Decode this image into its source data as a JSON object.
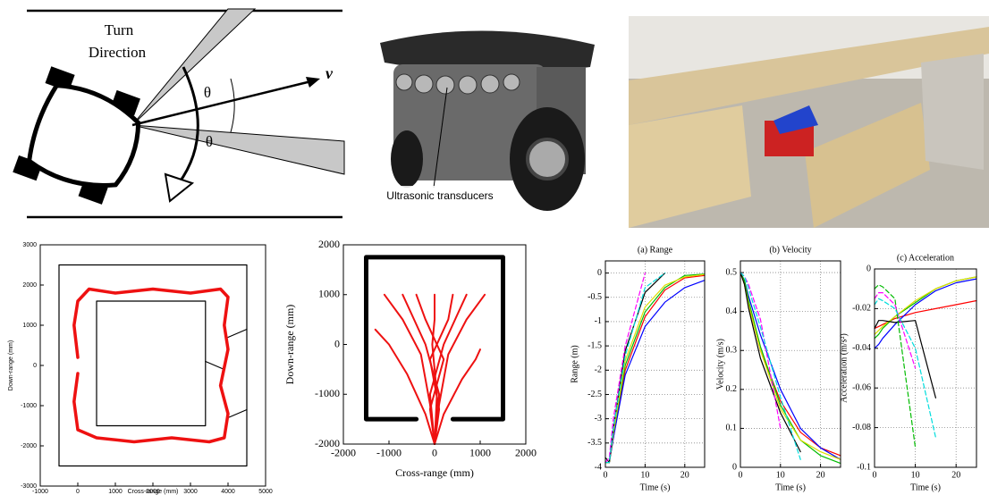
{
  "diagram": {
    "turn_label": [
      "Turn",
      "Direction"
    ],
    "velocity": "v",
    "angles": [
      "θ",
      "θ"
    ]
  },
  "photo": {
    "label": "Ultrasonic transducers"
  },
  "chart_data": [
    {
      "type": "line",
      "xlabel": "Cross-range (mm)",
      "ylabel": "Down-range (mm)",
      "xlim": [
        -1000,
        5000
      ],
      "ylim": [
        -3000,
        3000
      ],
      "xticks": [
        -1000,
        0,
        1000,
        2000,
        3000,
        4000,
        5000
      ],
      "yticks": [
        -3000,
        -2000,
        -1000,
        0,
        1000,
        2000,
        3000
      ],
      "grid": false,
      "series": [
        {
          "color": "#000000",
          "line_width": 1.2,
          "x": [
            -500,
            4500,
            4500,
            -500,
            -500
          ],
          "values": [
            -2500,
            -2500,
            2500,
            2500,
            -2500
          ]
        },
        {
          "color": "#000000",
          "line_width": 1.2,
          "x": [
            500,
            3400,
            3400,
            500,
            500
          ],
          "values": [
            -1500,
            -1500,
            1600,
            1600,
            -1500
          ]
        },
        {
          "color": "#000000",
          "line_width": 1.2,
          "x": [
            4000,
            4500
          ],
          "values": [
            700,
            900
          ]
        },
        {
          "color": "#000000",
          "line_width": 1.2,
          "x": [
            3400,
            3900
          ],
          "values": [
            100,
            -100
          ]
        },
        {
          "color": "#000000",
          "line_width": 1.2,
          "x": [
            4000,
            4500
          ],
          "values": [
            -1300,
            -1100
          ]
        },
        {
          "color": "#ee1111",
          "line_width": 3.5,
          "x": [
            0,
            -100,
            0,
            300,
            1000,
            2000,
            3000,
            3800,
            4000,
            3900,
            4000,
            3800,
            4000,
            3900,
            3500,
            2500,
            1500,
            500,
            0,
            -100,
            0
          ],
          "values": [
            200,
            1000,
            1600,
            1900,
            1800,
            1900,
            1800,
            1900,
            1700,
            1000,
            400,
            -500,
            -1200,
            -1800,
            -1900,
            -1800,
            -1900,
            -1800,
            -1600,
            -900,
            -200
          ]
        }
      ]
    },
    {
      "type": "line",
      "xlabel": "Cross-range (mm)",
      "ylabel": "Down-range (mm)",
      "xlim": [
        -2000,
        2000
      ],
      "ylim": [
        -2000,
        2000
      ],
      "xticks": [
        -2000,
        -1000,
        0,
        1000,
        2000
      ],
      "yticks": [
        -2000,
        -1000,
        0,
        1000,
        2000
      ],
      "grid": false,
      "series": [
        {
          "color": "#000000",
          "line_width": 5,
          "x": [
            -400,
            -1500,
            -1500,
            1500,
            1500,
            400
          ],
          "values": [
            -1500,
            -1500,
            1750,
            1750,
            -1500,
            -1500
          ]
        },
        {
          "color": "#ee1111",
          "line_width": 2,
          "x": [
            0,
            -100,
            -300,
            -700,
            -1100
          ],
          "values": [
            -2000,
            -1200,
            -200,
            500,
            1000
          ]
        },
        {
          "color": "#ee1111",
          "line_width": 2,
          "x": [
            0,
            100,
            -200,
            -500,
            -700
          ],
          "values": [
            -2000,
            -1000,
            0,
            600,
            1000
          ]
        },
        {
          "color": "#ee1111",
          "line_width": 2,
          "x": [
            0,
            -100,
            200,
            -200,
            -400
          ],
          "values": [
            -2000,
            -1300,
            -300,
            500,
            1000
          ]
        },
        {
          "color": "#ee1111",
          "line_width": 2,
          "x": [
            0,
            50,
            -50,
            0,
            0
          ],
          "values": [
            -2000,
            -1000,
            0,
            500,
            1000
          ]
        },
        {
          "color": "#ee1111",
          "line_width": 2,
          "x": [
            0,
            100,
            -100,
            300,
            400
          ],
          "values": [
            -2000,
            -1300,
            -300,
            500,
            1000
          ]
        },
        {
          "color": "#ee1111",
          "line_width": 2,
          "x": [
            0,
            -100,
            200,
            500,
            700
          ],
          "values": [
            -2000,
            -1000,
            0,
            600,
            1000
          ]
        },
        {
          "color": "#ee1111",
          "line_width": 2,
          "x": [
            0,
            100,
            300,
            700,
            1100
          ],
          "values": [
            -2000,
            -1200,
            -200,
            500,
            1000
          ]
        },
        {
          "color": "#ee1111",
          "line_width": 2,
          "x": [
            0,
            -200,
            -600,
            -1000,
            -1300
          ],
          "values": [
            -2000,
            -1400,
            -600,
            0,
            300
          ]
        },
        {
          "color": "#ee1111",
          "line_width": 2,
          "x": [
            0,
            200,
            600,
            900,
            1000
          ],
          "values": [
            -2000,
            -1400,
            -700,
            -300,
            -100
          ]
        }
      ]
    },
    {
      "type": "line",
      "title": "(a) Range",
      "xlabel": "Time (s)",
      "ylabel": "Range (m)",
      "xlim": [
        0,
        25
      ],
      "ylim": [
        -4,
        0.25
      ],
      "xticks": [
        0,
        10,
        20
      ],
      "yticks": [
        -4,
        -3.5,
        -3,
        -2.5,
        -2,
        -1.5,
        -1,
        -0.5,
        0
      ],
      "grid": true,
      "x": [
        0,
        1,
        2,
        5,
        10,
        15,
        20,
        25
      ],
      "series": [
        {
          "color": "#ff0000",
          "values": [
            -3.9,
            -3.9,
            -3.4,
            -2.0,
            -0.9,
            -0.35,
            -0.1,
            -0.05
          ]
        },
        {
          "color": "#0000ff",
          "values": [
            -3.9,
            -3.9,
            -3.4,
            -2.1,
            -1.1,
            -0.6,
            -0.3,
            -0.15
          ]
        },
        {
          "color": "#00bb00",
          "values": [
            -3.9,
            -3.9,
            -3.3,
            -1.9,
            -0.8,
            -0.3,
            -0.05,
            -0.02
          ]
        },
        {
          "color": "#dddd00",
          "values": [
            -3.9,
            -3.9,
            -3.3,
            -1.8,
            -0.7,
            -0.25,
            -0.08,
            -0.03
          ]
        },
        {
          "color": "#000000",
          "values": [
            -3.8,
            -3.9,
            -3.2,
            -1.6,
            -0.4,
            0,
            null,
            null
          ]
        },
        {
          "color": "#ff00ff",
          "dashed": true,
          "values": [
            -3.9,
            -3.8,
            -3.0,
            -1.5,
            0,
            null,
            null,
            null
          ]
        },
        {
          "color": "#00dddd",
          "dashed": true,
          "values": [
            -3.9,
            -3.9,
            -3.2,
            -1.7,
            -0.3,
            0,
            null,
            null
          ]
        }
      ]
    },
    {
      "type": "line",
      "title": "(b) Velocity",
      "xlabel": "Time (s)",
      "ylabel": "Velocity (m/s)",
      "xlim": [
        0,
        25
      ],
      "ylim": [
        0,
        0.53
      ],
      "xticks": [
        0,
        10,
        20
      ],
      "yticks": [
        0,
        0.1,
        0.2,
        0.3,
        0.4,
        0.5
      ],
      "grid": true,
      "x": [
        0,
        1,
        2,
        5,
        10,
        15,
        20,
        25
      ],
      "series": [
        {
          "color": "#ff0000",
          "values": [
            0.5,
            0.47,
            0.42,
            0.3,
            0.17,
            0.09,
            0.05,
            0.03
          ]
        },
        {
          "color": "#0000ff",
          "values": [
            0.5,
            0.48,
            0.44,
            0.34,
            0.2,
            0.1,
            0.05,
            0.02
          ]
        },
        {
          "color": "#00bb00",
          "values": [
            0.5,
            0.48,
            0.43,
            0.31,
            0.16,
            0.07,
            0.03,
            0.01
          ]
        },
        {
          "color": "#dddd00",
          "values": [
            0.5,
            0.47,
            0.42,
            0.3,
            0.15,
            0.07,
            0.04,
            0.02
          ]
        },
        {
          "color": "#000000",
          "values": [
            0.5,
            0.47,
            0.41,
            0.28,
            0.14,
            0.04,
            null,
            null
          ]
        },
        {
          "color": "#ff00ff",
          "dashed": true,
          "values": [
            0.5,
            0.49,
            0.47,
            0.38,
            0.1,
            null,
            null,
            null
          ]
        },
        {
          "color": "#00dddd",
          "dashed": true,
          "values": [
            0.5,
            0.49,
            0.46,
            0.36,
            0.18,
            0.02,
            null,
            null
          ]
        }
      ]
    },
    {
      "type": "line",
      "title": "(c) Acceleration",
      "xlabel": "Time (s)",
      "ylabel": "Acceleration (m/s²)",
      "xlim": [
        0,
        25
      ],
      "ylim": [
        -0.1,
        0
      ],
      "xticks": [
        0,
        10,
        20
      ],
      "yticks": [
        -0.1,
        -0.08,
        -0.06,
        -0.04,
        -0.02,
        0
      ],
      "grid": true,
      "x": [
        0,
        1,
        2,
        5,
        10,
        15,
        20,
        25
      ],
      "series": [
        {
          "color": "#ff0000",
          "values": [
            -0.03,
            -0.029,
            -0.028,
            -0.025,
            -0.022,
            -0.02,
            -0.018,
            -0.016
          ]
        },
        {
          "color": "#0000ff",
          "values": [
            -0.04,
            -0.038,
            -0.035,
            -0.028,
            -0.018,
            -0.011,
            -0.007,
            -0.005
          ]
        },
        {
          "color": "#00bb00",
          "values": [
            -0.035,
            -0.033,
            -0.03,
            -0.024,
            -0.017,
            -0.01,
            -0.006,
            -0.004
          ]
        },
        {
          "color": "#dddd00",
          "values": [
            -0.033,
            -0.031,
            -0.029,
            -0.024,
            -0.016,
            -0.01,
            -0.006,
            -0.004
          ]
        },
        {
          "color": "#000000",
          "values": [
            -0.03,
            -0.026,
            -0.026,
            -0.027,
            -0.026,
            -0.065,
            null,
            null
          ]
        },
        {
          "color": "#00bb00",
          "dashed": true,
          "values": [
            -0.01,
            -0.008,
            -0.009,
            -0.015,
            -0.09,
            null,
            null,
            null
          ]
        },
        {
          "color": "#ff00ff",
          "dashed": true,
          "values": [
            -0.015,
            -0.012,
            -0.012,
            -0.018,
            -0.05,
            null,
            null,
            null
          ]
        },
        {
          "color": "#00dddd",
          "dashed": true,
          "values": [
            -0.018,
            -0.015,
            -0.016,
            -0.02,
            -0.04,
            -0.085,
            null,
            null
          ]
        }
      ]
    }
  ]
}
